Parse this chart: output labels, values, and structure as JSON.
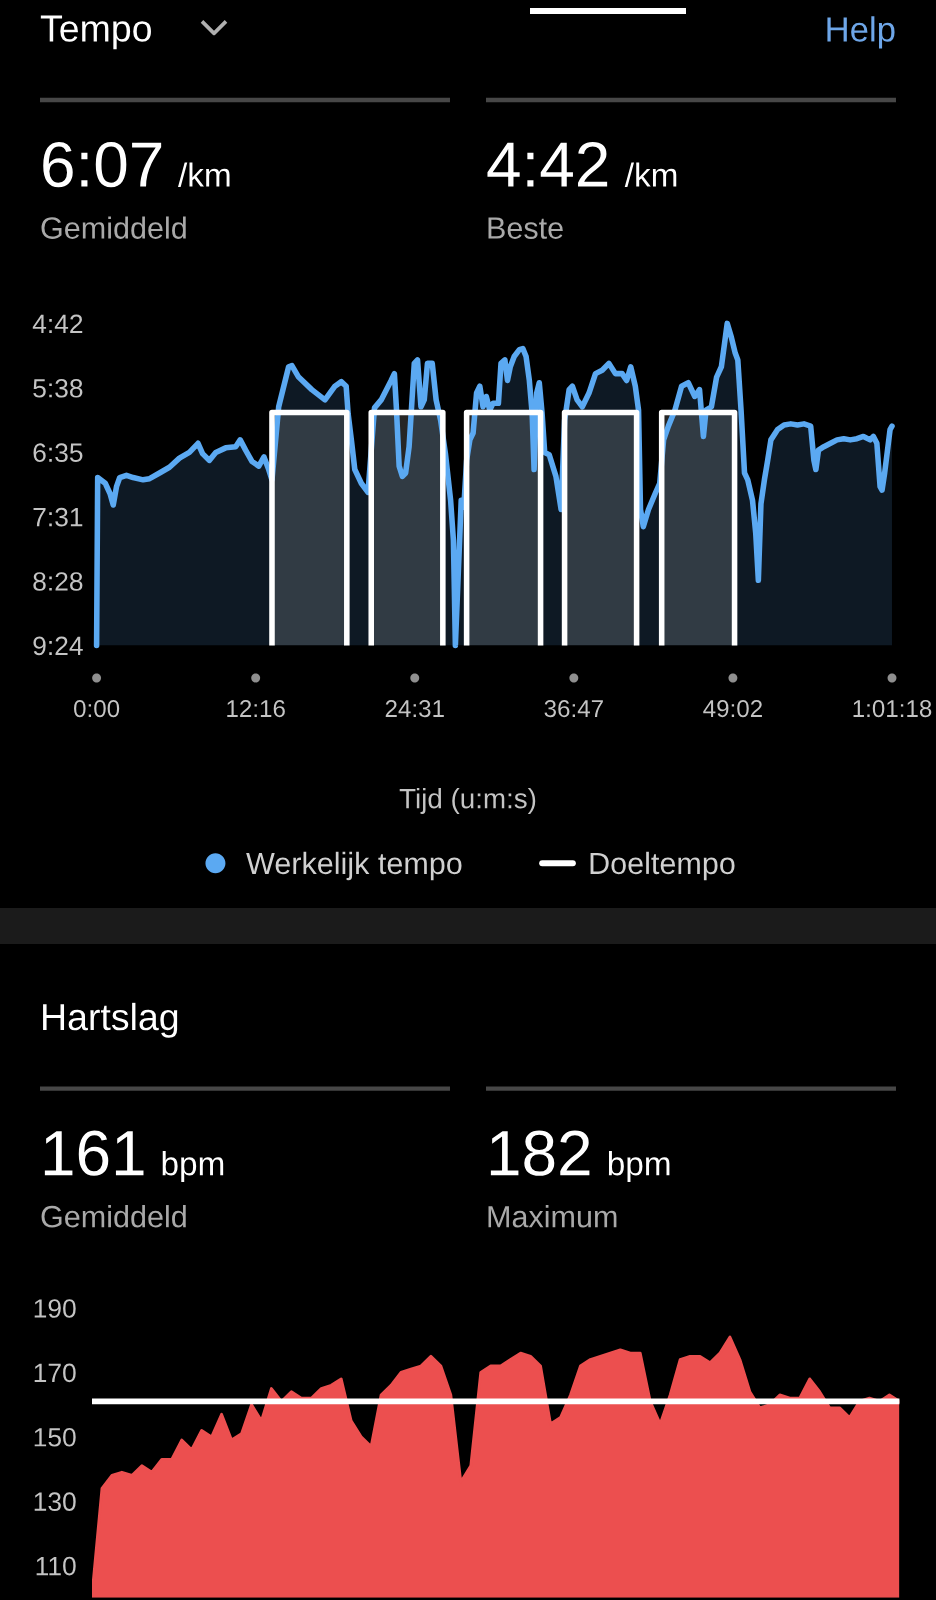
{
  "chart_data": [
    {
      "type": "line",
      "title": "Tempo",
      "xlabel": "Tijd (u:m:s)",
      "annotations": [
        "6:07",
        "/km",
        "Gemiddeld",
        "4:42",
        "/km",
        "Beste",
        "Help"
      ],
      "series": [
        {
          "name": "Werkelijk tempo",
          "type": "line",
          "color": "#5ba9f2",
          "x": [
            0,
            5,
            40,
            62,
            77,
            92,
            107,
            138,
            169,
            215,
            245,
            291,
            337,
            383,
            429,
            469,
            490,
            521,
            551,
            597,
            643,
            664,
            689,
            719,
            750,
            774,
            796,
            811,
            842,
            888,
            903,
            934,
            995,
            1056,
            1102,
            1132,
            1154,
            1163,
            1178,
            1194,
            1224,
            1255,
            1285,
            1316,
            1362,
            1377,
            1386,
            1399,
            1414,
            1429,
            1445,
            1469,
            1484,
            1500,
            1515,
            1530,
            1552,
            1570,
            1591,
            1613,
            1637,
            1650,
            1659,
            1686,
            1698,
            1711,
            1726,
            1741,
            1757,
            1772,
            1787,
            1802,
            1818,
            1833,
            1858,
            1870,
            1888,
            1900,
            1913,
            1931,
            1955,
            1971,
            1986,
            2001,
            2014,
            2023,
            2035,
            2047,
            2060,
            2072,
            2093,
            2124,
            2148,
            2164,
            2185,
            2200,
            2222,
            2246,
            2277,
            2307,
            2338,
            2369,
            2399,
            2430,
            2451,
            2470,
            2491,
            2506,
            2515,
            2528,
            2552,
            2583,
            2604,
            2622,
            2644,
            2674,
            2705,
            2736,
            2766,
            2788,
            2806,
            2818,
            2843,
            2867,
            2889,
            2904,
            2916,
            2935,
            2953,
            2965,
            2980,
            2996,
            3011,
            3033,
            3048,
            3060,
            3072,
            3088,
            3103,
            3118,
            3149,
            3179,
            3210,
            3241,
            3271,
            3302,
            3317,
            3326,
            3338,
            3363,
            3394,
            3424,
            3455,
            3485,
            3516,
            3546,
            3577,
            3592,
            3608,
            3623,
            3632,
            3644,
            3669,
            3678
          ],
          "values": [
            564,
            417,
            422,
            431,
            441,
            425,
            417,
            415,
            417,
            419,
            418,
            413,
            408,
            400,
            395,
            387,
            396,
            402,
            395,
            391,
            390,
            384,
            393,
            403,
            407,
            399,
            410,
            419,
            355,
            320,
            319,
            329,
            340,
            349,
            337,
            333,
            337,
            361,
            384,
            410,
            422,
            430,
            356,
            349,
            332,
            326,
            355,
            407,
            416,
            413,
            390,
            317,
            314,
            355,
            349,
            317,
            317,
            349,
            367,
            396,
            437,
            472,
            564,
            437,
            443,
            402,
            384,
            378,
            343,
            337,
            355,
            346,
            358,
            352,
            352,
            317,
            314,
            332,
            320,
            311,
            305,
            304,
            311,
            332,
            361,
            410,
            343,
            334,
            361,
            395,
            397,
            416,
            445,
            367,
            340,
            337,
            349,
            355,
            343,
            326,
            323,
            317,
            326,
            326,
            332,
            320,
            337,
            358,
            445,
            460,
            445,
            431,
            422,
            384,
            372,
            358,
            337,
            334,
            346,
            340,
            381,
            358,
            355,
            329,
            320,
            299,
            282,
            294,
            308,
            314,
            358,
            413,
            419,
            437,
            466,
            507,
            440,
            419,
            402,
            384,
            375,
            371,
            370,
            371,
            370,
            372,
            402,
            410,
            393,
            390,
            387,
            384,
            383,
            384,
            383,
            381,
            384,
            381,
            387,
            425,
            428,
            413,
            375,
            372
          ]
        },
        {
          "name": "Doeltempo",
          "type": "area",
          "color": "#ffffff",
          "x": [
            811,
            811,
            1157,
            1157,
            null,
            1270,
            1270,
            1601,
            1601,
            null,
            1711,
            1711,
            2053,
            2053,
            null,
            2164,
            2164,
            2497,
            2497,
            null,
            2613,
            2613,
            2950,
            2950
          ],
          "values": [
            564,
            360,
            360,
            564,
            null,
            564,
            360,
            360,
            564,
            null,
            564,
            360,
            360,
            564,
            null,
            564,
            360,
            360,
            564,
            null,
            564,
            360,
            360,
            564
          ]
        }
      ],
      "xlim": [
        0,
        3678
      ],
      "xticks": [
        {
          "value": 0,
          "label": "0:00"
        },
        {
          "value": 735.6,
          "label": "12:16"
        },
        {
          "value": 1471.2,
          "label": "24:31"
        },
        {
          "value": 2206.8,
          "label": "36:47"
        },
        {
          "value": 2942.4,
          "label": "49:02"
        },
        {
          "value": 3678,
          "label": "1:01:18"
        }
      ],
      "ylim": [
        564,
        282
      ],
      "yticks": [
        {
          "value": 282,
          "label": "4:42"
        },
        {
          "value": 338.4,
          "label": "5:38"
        },
        {
          "value": 394.8,
          "label": "6:35"
        },
        {
          "value": 451.2,
          "label": "7:31"
        },
        {
          "value": 507.6,
          "label": "8:28"
        },
        {
          "value": 564,
          "label": "9:24"
        }
      ],
      "legend": "bottom"
    },
    {
      "type": "area",
      "title": "Hartslag",
      "annotations": [
        "161",
        "bpm",
        "Gemiddeld",
        "182",
        "bpm",
        "Maximum"
      ],
      "categories": [
        null,
        null,
        null,
        null,
        null,
        null,
        null,
        null,
        null,
        null,
        null,
        null,
        null,
        null,
        null,
        null,
        null,
        null,
        null,
        null,
        null,
        null,
        null,
        null,
        null,
        null,
        null,
        null,
        null,
        null,
        null,
        null,
        null,
        null,
        null,
        null,
        null,
        null,
        null,
        null,
        null,
        null,
        null,
        null,
        null,
        null,
        null,
        null,
        null,
        null,
        null,
        null,
        null,
        null,
        null,
        null,
        null,
        null,
        null,
        null,
        null,
        null,
        null,
        null,
        null,
        null,
        null,
        null,
        null,
        null,
        null,
        null,
        null,
        null,
        null,
        null,
        null,
        null,
        null,
        null,
        null,
        null
      ],
      "series": [
        {
          "color": "#ec4f4f",
          "values": [
            101,
            134,
            138,
            139,
            138,
            141,
            139,
            143,
            143,
            149,
            146,
            152,
            150,
            157,
            149,
            151,
            160,
            155,
            165,
            161,
            164,
            162,
            162,
            165,
            166,
            168,
            155,
            150,
            147,
            163,
            166,
            170,
            171,
            172,
            175,
            172,
            163,
            136,
            141,
            170,
            172,
            172,
            174,
            176,
            175,
            172,
            154,
            156,
            163,
            172,
            174,
            175,
            176,
            177,
            176,
            176,
            161,
            154,
            163,
            174,
            175,
            175,
            173,
            176,
            181,
            174,
            164,
            159,
            160,
            163,
            162,
            162,
            168,
            164,
            159,
            159,
            156,
            161,
            162,
            161,
            163,
            161
          ]
        }
      ],
      "ylim": [
        100,
        190
      ],
      "yticks": [
        110,
        130,
        150,
        170,
        190
      ],
      "ref_lines": [
        {
          "axis": "y",
          "value": 161,
          "color": "#ffffff"
        }
      ],
      "tick_labels": "y"
    }
  ]
}
